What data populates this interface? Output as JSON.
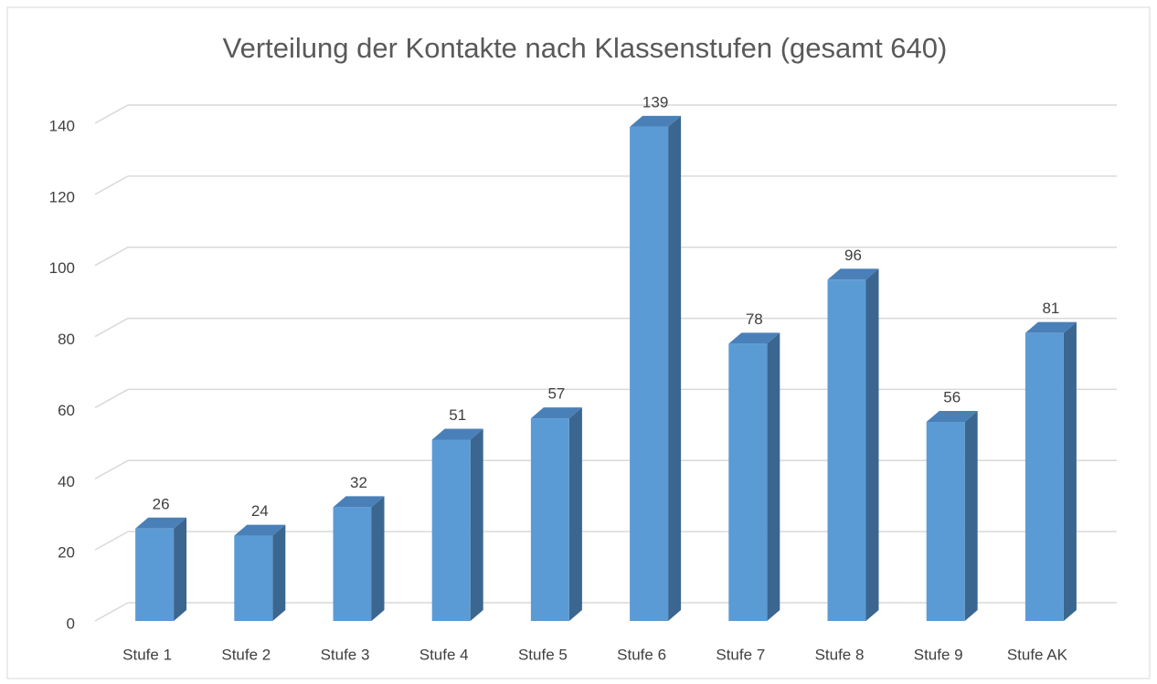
{
  "chart_data": {
    "type": "bar",
    "title": "Verteilung der Kontakte nach Klassenstufen (gesamt 640)",
    "categories": [
      "Stufe 1",
      "Stufe 2",
      "Stufe 3",
      "Stufe 4",
      "Stufe 5",
      "Stufe 6",
      "Stufe 7",
      "Stufe 8",
      "Stufe 9",
      "Stufe AK"
    ],
    "values": [
      26,
      24,
      32,
      51,
      57,
      139,
      78,
      96,
      56,
      81
    ],
    "color": "#5b9bd5",
    "ylim": [
      0,
      140
    ],
    "yticks": [
      0,
      20,
      40,
      60,
      80,
      100,
      120,
      140
    ],
    "grid": true
  }
}
